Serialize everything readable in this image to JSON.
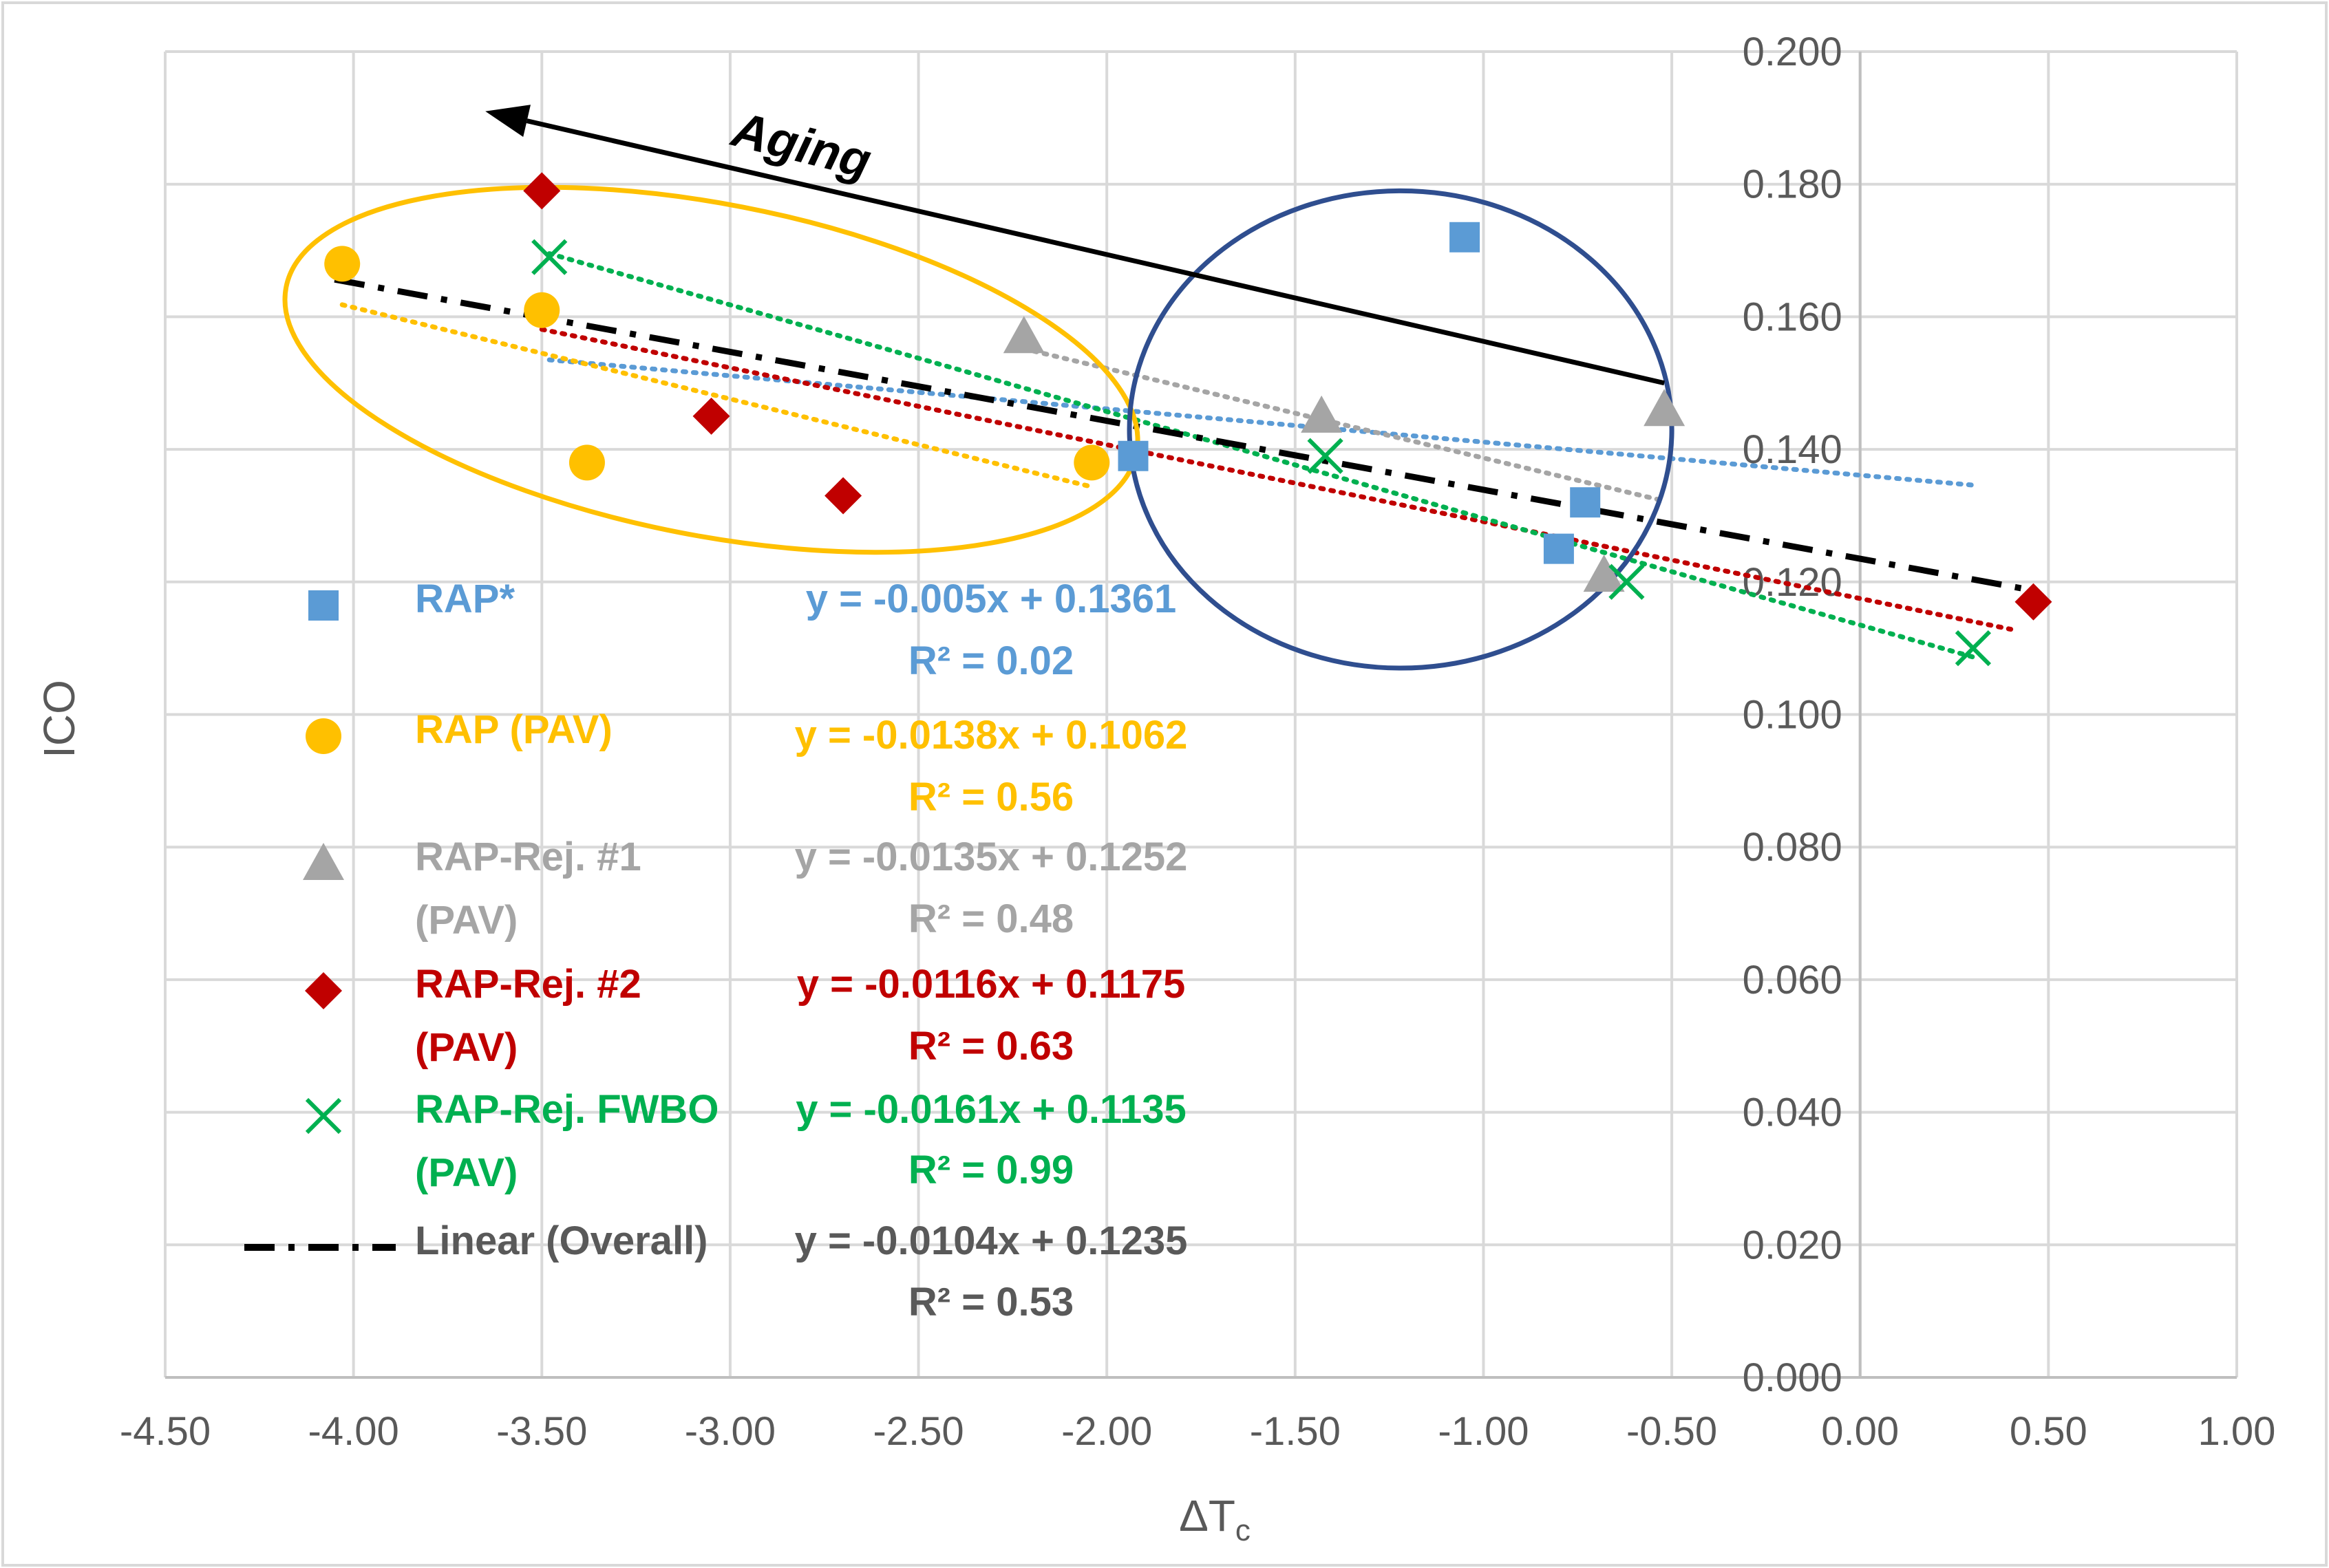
{
  "chart_data": {
    "type": "scatter",
    "title": "",
    "xlabel": "ΔT",
    "xlabel_subscript": "c",
    "ylabel": "ICO",
    "xlim": [
      -4.5,
      1.0
    ],
    "ylim": [
      0.0,
      0.2
    ],
    "x_ticks": [
      "-4.50",
      "-4.00",
      "-3.50",
      "-3.00",
      "-2.50",
      "-2.00",
      "-1.50",
      "-1.00",
      "-0.50",
      "0.00",
      "0.50",
      "1.00"
    ],
    "y_ticks": [
      "0.000",
      "0.020",
      "0.040",
      "0.060",
      "0.080",
      "0.100",
      "0.120",
      "0.140",
      "0.160",
      "0.180",
      "0.200"
    ],
    "grid": true,
    "legend_position": "left",
    "series": [
      {
        "name": "RAP*",
        "label_lines": [
          "RAP*"
        ],
        "marker": "square",
        "color": "#5B9BD5",
        "points": [
          [
            -1.05,
            0.172
          ],
          [
            -1.93,
            0.139
          ],
          [
            -0.73,
            0.132
          ],
          [
            -0.8,
            0.125
          ]
        ],
        "trend": {
          "slope": -0.005,
          "intercept": 0.1361,
          "x_from": -3.48,
          "x_to": 0.3
        },
        "equation": "y = -0.005x + 0.1361",
        "r2": "R² = 0.02"
      },
      {
        "name": "RAP (PAV)",
        "label_lines": [
          "RAP (PAV)"
        ],
        "marker": "circle",
        "color": "#FFC000",
        "points": [
          [
            -4.03,
            0.168
          ],
          [
            -3.5,
            0.161
          ],
          [
            -3.38,
            0.138
          ],
          [
            -2.04,
            0.138
          ]
        ],
        "trend": {
          "slope": -0.0138,
          "intercept": 0.1062,
          "x_from": -4.03,
          "x_to": -2.04
        },
        "equation": "y = -0.0138x + 0.1062",
        "r2": "R² = 0.56"
      },
      {
        "name": "RAP-Rej. #1 (PAV)",
        "label_lines": [
          "RAP-Rej. #1",
          "(PAV)"
        ],
        "marker": "triangle",
        "color": "#A5A5A5",
        "points": [
          [
            -2.22,
            0.157
          ],
          [
            -1.43,
            0.145
          ],
          [
            -0.52,
            0.146
          ],
          [
            -0.68,
            0.121
          ]
        ],
        "trend": {
          "slope": -0.0135,
          "intercept": 0.1252,
          "x_from": -2.22,
          "x_to": -0.52
        },
        "equation": "y = -0.0135x + 0.1252",
        "r2": "R² = 0.48"
      },
      {
        "name": "RAP-Rej. #2 (PAV)",
        "label_lines": [
          "RAP-Rej. #2",
          "(PAV)"
        ],
        "marker": "diamond",
        "color": "#C00000",
        "points": [
          [
            -3.5,
            0.179
          ],
          [
            -3.05,
            0.145
          ],
          [
            -2.7,
            0.133
          ],
          [
            0.46,
            0.117
          ]
        ],
        "trend": {
          "slope": -0.0116,
          "intercept": 0.1175,
          "x_from": -3.5,
          "x_to": 0.4
        },
        "equation": "y = -0.0116x + 0.1175",
        "r2": "R² = 0.63"
      },
      {
        "name": "RAP-Rej. FWBO (PAV)",
        "label_lines": [
          "RAP-Rej. FWBO",
          "(PAV)"
        ],
        "marker": "x",
        "color": "#00B050",
        "points": [
          [
            -3.48,
            0.169
          ],
          [
            -1.42,
            0.139
          ],
          [
            -0.62,
            0.12
          ],
          [
            0.3,
            0.11
          ]
        ],
        "trend": {
          "slope": -0.0161,
          "intercept": 0.1135,
          "x_from": -3.48,
          "x_to": 0.3
        },
        "equation": "y = -0.0161x + 0.1135",
        "r2": "R² = 0.99"
      },
      {
        "name": "Linear (Overall)",
        "label_lines": [
          "Linear (Overall)"
        ],
        "marker": "dashdot",
        "color": "#000000",
        "points": [],
        "trend": {
          "slope": -0.0104,
          "intercept": 0.1235,
          "x_from": -4.05,
          "x_to": 0.46
        },
        "equation": "y = -0.0104x + 0.1235",
        "r2": "R² = 0.53",
        "equation_color": "#595959"
      }
    ],
    "annotations": {
      "aging_label": "Aging",
      "aging_arrow_from": [
        -0.52,
        0.15
      ],
      "aging_arrow_to": [
        -3.65,
        0.191
      ],
      "pav_group_ellipse": {
        "color": "#FFC000",
        "cx": -3.05,
        "cy": 0.152,
        "rx": 1.15,
        "ry": 0.025
      },
      "aged_group_ellipse": {
        "color": "#2F4E8F",
        "cx": -1.22,
        "cy": 0.143,
        "rx": 0.72,
        "ry": 0.036
      }
    }
  }
}
